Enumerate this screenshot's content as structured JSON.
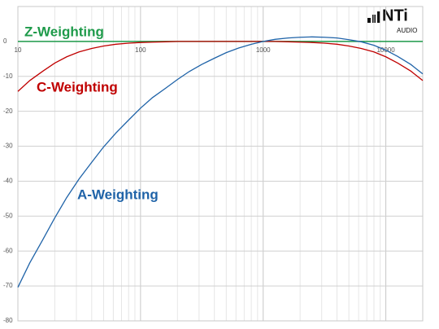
{
  "chart_data": {
    "type": "line",
    "logo": {
      "name": "NTi",
      "subtitle": "AUDIO"
    },
    "x": [
      10,
      12.5,
      16,
      20,
      25,
      31.5,
      40,
      50,
      63,
      80,
      100,
      125,
      160,
      200,
      250,
      315,
      400,
      500,
      630,
      800,
      1000,
      1250,
      1600,
      2000,
      2500,
      3150,
      4000,
      5000,
      6300,
      8000,
      10000,
      12500,
      16000,
      20000
    ],
    "series": [
      {
        "name": "Z-Weighting",
        "color": "#1e9a4a",
        "values": [
          0,
          0,
          0,
          0,
          0,
          0,
          0,
          0,
          0,
          0,
          0,
          0,
          0,
          0,
          0,
          0,
          0,
          0,
          0,
          0,
          0,
          0,
          0,
          0,
          0,
          0,
          0,
          0,
          0,
          0,
          0,
          0,
          0,
          0
        ]
      },
      {
        "name": "C-Weighting",
        "color": "#c00000",
        "values": [
          -14.3,
          -11.2,
          -8.5,
          -6.2,
          -4.4,
          -3.0,
          -2.0,
          -1.3,
          -0.8,
          -0.5,
          -0.3,
          -0.2,
          -0.1,
          0,
          0,
          0,
          0,
          0,
          0,
          0,
          0,
          0,
          -0.1,
          -0.2,
          -0.3,
          -0.5,
          -0.8,
          -1.3,
          -2.0,
          -3.0,
          -4.4,
          -6.2,
          -8.5,
          -11.2
        ]
      },
      {
        "name": "A-Weighting",
        "color": "#1f63a8",
        "values": [
          -70.4,
          -63.4,
          -56.7,
          -50.5,
          -44.7,
          -39.4,
          -34.6,
          -30.2,
          -26.2,
          -22.5,
          -19.1,
          -16.1,
          -13.4,
          -10.9,
          -8.6,
          -6.6,
          -4.8,
          -3.2,
          -1.9,
          -0.8,
          0,
          0.6,
          1.0,
          1.2,
          1.3,
          1.2,
          1.0,
          0.5,
          -0.1,
          -1.1,
          -2.5,
          -4.3,
          -6.6,
          -9.3
        ]
      }
    ],
    "xscale": "log",
    "xlim": [
      10,
      20000
    ],
    "xticks": [
      10,
      100,
      1000,
      10000
    ],
    "ylim": [
      -80,
      10
    ],
    "yticks": [
      0,
      -10,
      -20,
      -30,
      -40,
      -50,
      -60,
      -70,
      -80
    ],
    "grid": true
  }
}
